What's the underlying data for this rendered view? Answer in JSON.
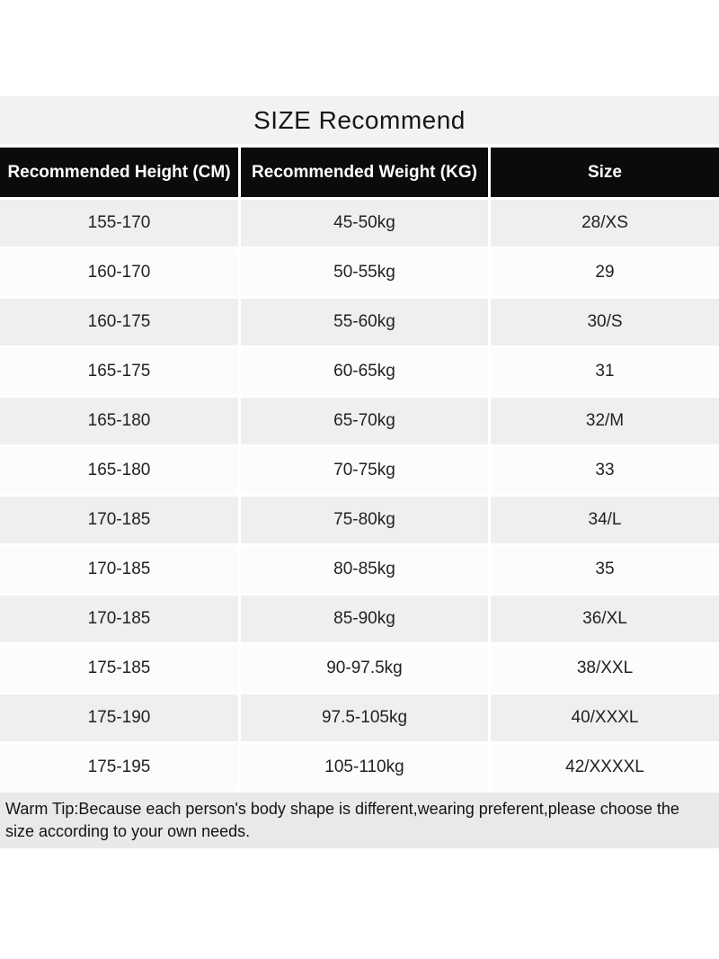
{
  "title": "SIZE Recommend",
  "table": {
    "headers": [
      "Recommended Height (CM)",
      "Recommended Weight (KG)",
      "Size"
    ],
    "rows": [
      [
        "155-170",
        "45-50kg",
        "28/XS"
      ],
      [
        "160-170",
        "50-55kg",
        "29"
      ],
      [
        "160-175",
        "55-60kg",
        "30/S"
      ],
      [
        "165-175",
        "60-65kg",
        "31"
      ],
      [
        "165-180",
        "65-70kg",
        "32/M"
      ],
      [
        "165-180",
        "70-75kg",
        "33"
      ],
      [
        "170-185",
        "75-80kg",
        "34/L"
      ],
      [
        "170-185",
        "80-85kg",
        "35"
      ],
      [
        "170-185",
        "85-90kg",
        "36/XL"
      ],
      [
        "175-185",
        "90-97.5kg",
        "38/XXL"
      ],
      [
        "175-190",
        "97.5-105kg",
        "40/XXXL"
      ],
      [
        "175-195",
        "105-110kg",
        "42/XXXXL"
      ]
    ]
  },
  "warm_tip": "Warm Tip:Because each person's body shape is different,wearing preferent,please choose the size according to your own needs.",
  "colors": {
    "header_bg": "#0b0b0b",
    "header_text": "#ffffff",
    "row_gray_bg": "#efefef",
    "row_white_bg": "#fcfcfc",
    "title_band_bg": "#f2f2f2",
    "tip_bg": "#e9e9e9",
    "body_text": "#222222"
  }
}
